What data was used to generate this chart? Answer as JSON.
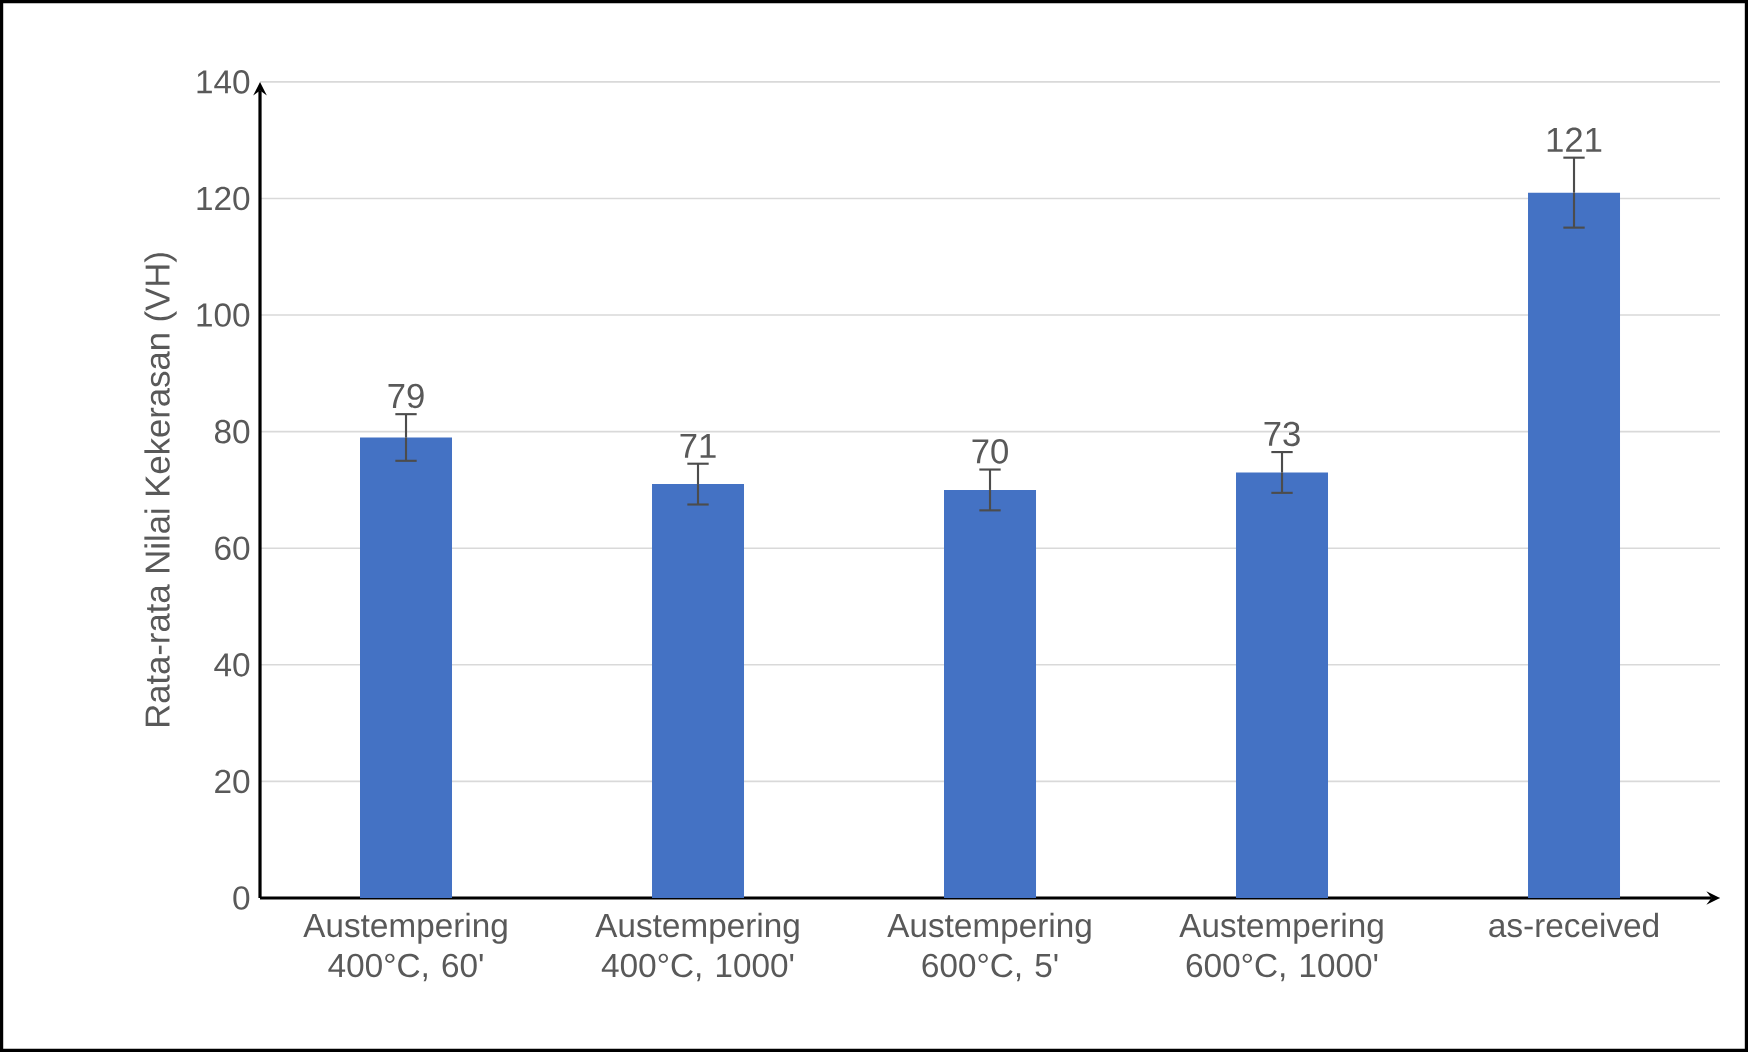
{
  "chart_data": {
    "type": "bar",
    "ylabel": "Rata-rata Nilai Kekerasan (VH)",
    "categories": [
      "Austempering 400°C, 60'",
      "Austempering 400°C, 1000'",
      "Austempering 600°C, 5'",
      "Austempering 600°C, 1000'",
      "as-received"
    ],
    "values": [
      79,
      71,
      70,
      73,
      121
    ],
    "errors": [
      4,
      3.5,
      3.5,
      3.5,
      6
    ],
    "color": "#4472c4",
    "ylim": [
      0,
      140
    ],
    "yticks": [
      0,
      20,
      40,
      60,
      80,
      100,
      120,
      140
    ],
    "grid": "y",
    "data_labels": true
  }
}
